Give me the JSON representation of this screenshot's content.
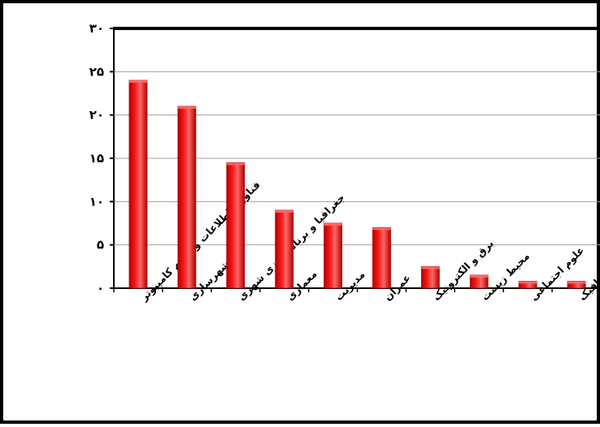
{
  "chart_data": {
    "type": "bar",
    "categories": [
      "فناوری اطلاعات و علوم کامپیوتر",
      "شهرسازی",
      "جغرافیا و برنامه ریزی شهری",
      "معماری",
      "مدیریت",
      "عمران",
      "برق و الکترونیک",
      "محیط زیست",
      "علوم اجتماعی",
      "هنر و گرافیک"
    ],
    "values": [
      24,
      21,
      14.5,
      9,
      7.5,
      7,
      2.5,
      1.5,
      0.8,
      0.8
    ],
    "ylim": [
      0,
      30
    ],
    "yticks": [
      0,
      5,
      10,
      15,
      20,
      25,
      30
    ],
    "ytick_labels": [
      "۰",
      "۵",
      "۱۰",
      "۱۵",
      "۲۰",
      "۲۵",
      "۳۰"
    ],
    "grid": true,
    "colors": {
      "bar": "#ff1a1a",
      "bar_dark": "#b30000",
      "bar_light": "#ff6a6a",
      "grid": "#a0a0a0",
      "axis": "#000000"
    }
  }
}
